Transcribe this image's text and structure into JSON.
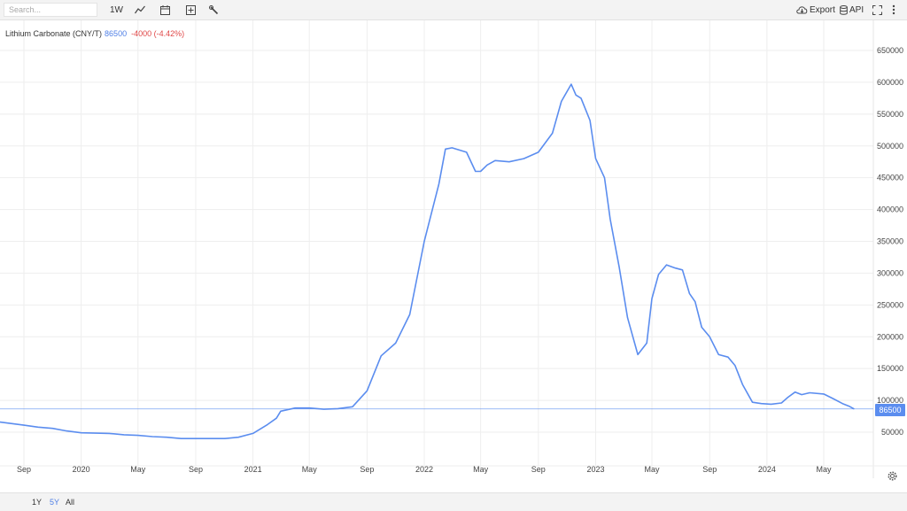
{
  "toolbar": {
    "search_placeholder": "Search...",
    "period_label": "1W",
    "export_label": "Export",
    "api_label": "API"
  },
  "icons": [
    "line-chart-icon",
    "calendar-icon",
    "add-indicator-icon",
    "wrench-icon",
    "cloud-download-icon",
    "database-icon",
    "fullscreen-icon",
    "more-icon",
    "settings-gear-icon"
  ],
  "colors": {
    "series": "#5b8def",
    "up_value": "#4f7fe6",
    "down_value": "#e04848",
    "grid": "#eeeeee",
    "axis_text": "#444444"
  },
  "range_buttons": [
    {
      "label": "1Y",
      "active": false
    },
    {
      "label": "5Y",
      "active": true
    },
    {
      "label": "All",
      "active": false
    }
  ],
  "chart_data": {
    "type": "line",
    "title": "",
    "series": [
      {
        "name": "Lithium Carbonate (CNY/T)",
        "last_value": "86500",
        "change": "-4000 (-4.42%)",
        "points": [
          [
            "2019-07-01",
            67000
          ],
          [
            "2019-08-01",
            64000
          ],
          [
            "2019-09-01",
            61000
          ],
          [
            "2019-10-01",
            58000
          ],
          [
            "2019-11-01",
            56000
          ],
          [
            "2019-12-01",
            52000
          ],
          [
            "2020-01-01",
            49000
          ],
          [
            "2020-02-01",
            48500
          ],
          [
            "2020-03-01",
            48000
          ],
          [
            "2020-04-01",
            46000
          ],
          [
            "2020-05-01",
            45000
          ],
          [
            "2020-06-01",
            43000
          ],
          [
            "2020-07-01",
            42000
          ],
          [
            "2020-08-01",
            40000
          ],
          [
            "2020-09-01",
            40000
          ],
          [
            "2020-10-01",
            40000
          ],
          [
            "2020-11-01",
            40000
          ],
          [
            "2020-12-01",
            42000
          ],
          [
            "2021-01-01",
            48000
          ],
          [
            "2021-02-01",
            62000
          ],
          [
            "2021-02-20",
            72000
          ],
          [
            "2021-03-01",
            83000
          ],
          [
            "2021-04-01",
            88000
          ],
          [
            "2021-05-01",
            88000
          ],
          [
            "2021-06-01",
            86000
          ],
          [
            "2021-07-01",
            87000
          ],
          [
            "2021-08-01",
            90000
          ],
          [
            "2021-09-01",
            115000
          ],
          [
            "2021-10-01",
            170000
          ],
          [
            "2021-11-01",
            190000
          ],
          [
            "2021-12-01",
            235000
          ],
          [
            "2022-01-01",
            350000
          ],
          [
            "2022-02-01",
            440000
          ],
          [
            "2022-02-15",
            495000
          ],
          [
            "2022-03-01",
            497000
          ],
          [
            "2022-04-01",
            490000
          ],
          [
            "2022-04-20",
            460000
          ],
          [
            "2022-05-01",
            460000
          ],
          [
            "2022-05-15",
            470000
          ],
          [
            "2022-06-01",
            477000
          ],
          [
            "2022-07-01",
            475000
          ],
          [
            "2022-08-01",
            480000
          ],
          [
            "2022-09-01",
            490000
          ],
          [
            "2022-10-01",
            520000
          ],
          [
            "2022-10-20",
            570000
          ],
          [
            "2022-11-10",
            597000
          ],
          [
            "2022-11-20",
            580000
          ],
          [
            "2022-12-01",
            575000
          ],
          [
            "2022-12-20",
            540000
          ],
          [
            "2023-01-01",
            480000
          ],
          [
            "2023-01-20",
            450000
          ],
          [
            "2023-02-01",
            385000
          ],
          [
            "2023-02-20",
            310000
          ],
          [
            "2023-03-10",
            230000
          ],
          [
            "2023-04-01",
            172000
          ],
          [
            "2023-04-20",
            190000
          ],
          [
            "2023-05-01",
            260000
          ],
          [
            "2023-05-15",
            298000
          ],
          [
            "2023-06-01",
            313000
          ],
          [
            "2023-06-20",
            308000
          ],
          [
            "2023-07-05",
            305000
          ],
          [
            "2023-07-20",
            268000
          ],
          [
            "2023-08-01",
            255000
          ],
          [
            "2023-08-15",
            215000
          ],
          [
            "2023-09-01",
            200000
          ],
          [
            "2023-09-20",
            172000
          ],
          [
            "2023-10-10",
            168000
          ],
          [
            "2023-10-25",
            155000
          ],
          [
            "2023-11-10",
            125000
          ],
          [
            "2023-12-01",
            97000
          ],
          [
            "2023-12-20",
            95000
          ],
          [
            "2024-01-10",
            94000
          ],
          [
            "2024-02-01",
            96000
          ],
          [
            "2024-02-15",
            105000
          ],
          [
            "2024-03-01",
            113000
          ],
          [
            "2024-03-15",
            109000
          ],
          [
            "2024-04-01",
            112000
          ],
          [
            "2024-05-01",
            110000
          ],
          [
            "2024-05-20",
            103000
          ],
          [
            "2024-06-10",
            95000
          ],
          [
            "2024-06-25",
            90500
          ],
          [
            "2024-07-05",
            86500
          ]
        ]
      }
    ],
    "y_axis": {
      "min": 0,
      "max": 650000,
      "ticks": [
        50000,
        100000,
        150000,
        200000,
        250000,
        300000,
        350000,
        400000,
        450000,
        500000,
        550000,
        600000,
        650000
      ],
      "tick_labels": [
        "50000",
        "100000",
        "150000",
        "200000",
        "250000",
        "300000",
        "350000",
        "400000",
        "450000",
        "500000",
        "550000",
        "600000",
        "650000"
      ]
    },
    "x_axis": {
      "range": [
        "2019-07-01",
        "2024-07-20"
      ],
      "ticks": [
        {
          "date": "2019-09-01",
          "label": "Sep"
        },
        {
          "date": "2020-01-01",
          "label": "2020"
        },
        {
          "date": "2020-05-01",
          "label": "May"
        },
        {
          "date": "2020-09-01",
          "label": "Sep"
        },
        {
          "date": "2021-01-01",
          "label": "2021"
        },
        {
          "date": "2021-05-01",
          "label": "May"
        },
        {
          "date": "2021-09-01",
          "label": "Sep"
        },
        {
          "date": "2022-01-01",
          "label": "2022"
        },
        {
          "date": "2022-05-01",
          "label": "May"
        },
        {
          "date": "2022-09-01",
          "label": "Sep"
        },
        {
          "date": "2023-01-01",
          "label": "2023"
        },
        {
          "date": "2023-05-01",
          "label": "May"
        },
        {
          "date": "2023-09-01",
          "label": "Sep"
        },
        {
          "date": "2024-01-01",
          "label": "2024"
        },
        {
          "date": "2024-05-01",
          "label": "May"
        }
      ]
    },
    "price_line": 86500,
    "grid": true,
    "legend_position": "top-left"
  }
}
